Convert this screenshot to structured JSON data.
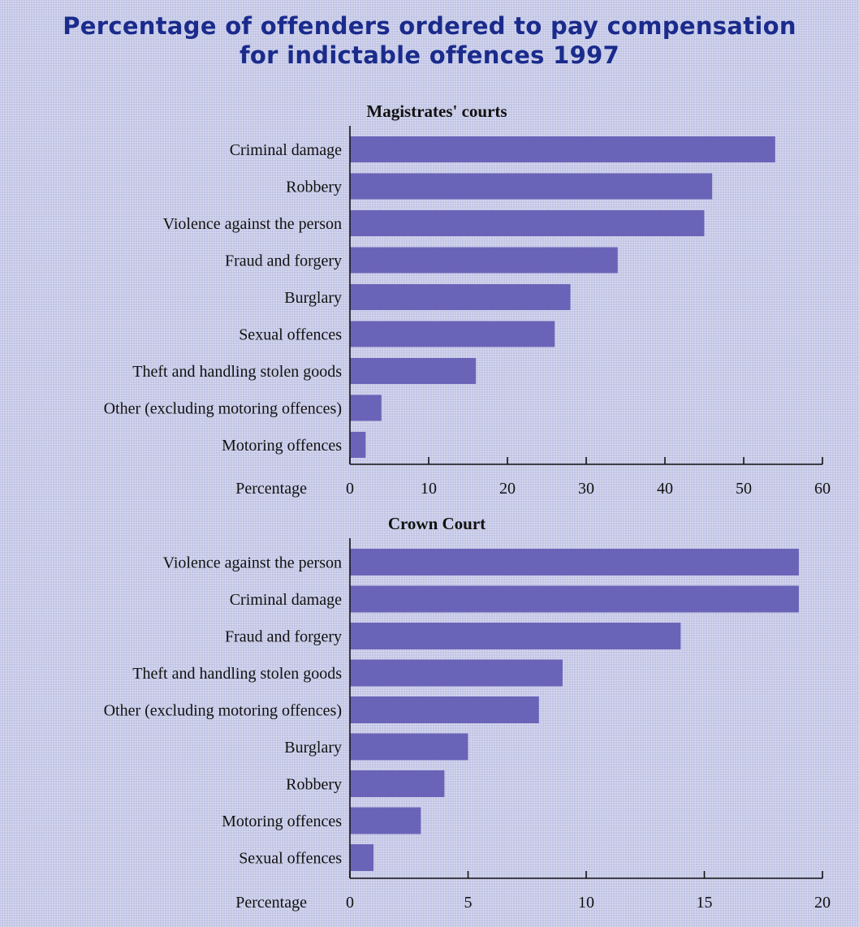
{
  "title_lines": [
    "Percentage of offenders ordered to pay compensation",
    "for indictable offences 1997"
  ],
  "colors": {
    "title": "#1a2b8c",
    "bar": "#6a64b8",
    "background": "#bfc3e3"
  },
  "chart_data": [
    {
      "type": "bar",
      "orientation": "horizontal",
      "title": "Magistrates' courts",
      "xlabel": "Percentage",
      "categories": [
        "Criminal damage",
        "Robbery",
        "Violence against the person",
        "Fraud and forgery",
        "Burglary",
        "Sexual offences",
        "Theft and handling stolen goods",
        "Other (excluding motoring offences)",
        "Motoring offences"
      ],
      "values": [
        54,
        46,
        45,
        34,
        28,
        26,
        16,
        4,
        2
      ],
      "xlim": [
        0,
        60
      ],
      "ticks": [
        0,
        10,
        20,
        30,
        40,
        50,
        60
      ],
      "grid": false
    },
    {
      "type": "bar",
      "orientation": "horizontal",
      "title": "Crown Court",
      "xlabel": "Percentage",
      "categories": [
        "Violence against the person",
        "Criminal damage",
        "Fraud and forgery",
        "Theft and handling stolen goods",
        "Other (excluding motoring offences)",
        "Burglary",
        "Robbery",
        "Motoring offences",
        "Sexual offences"
      ],
      "values": [
        19,
        19,
        14,
        9,
        8,
        5,
        4,
        3,
        1
      ],
      "xlim": [
        0,
        20
      ],
      "ticks": [
        0,
        5,
        10,
        15,
        20
      ],
      "grid": false
    }
  ]
}
